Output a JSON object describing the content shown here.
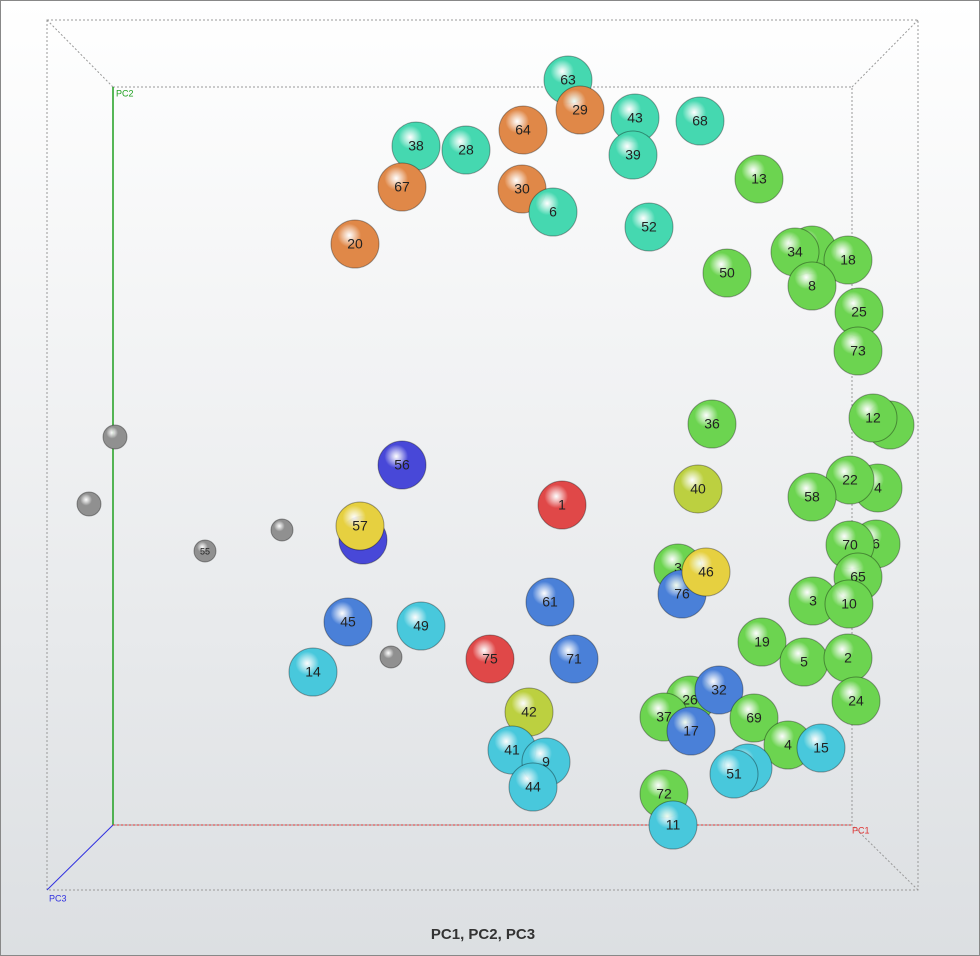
{
  "chart_data": {
    "type": "scatter3d",
    "title": "PC1, PC2, PC3",
    "x_label": "PC1",
    "y_label": "PC2",
    "z_label": "PC3",
    "x_color": "#e03030",
    "y_color": "#20a020",
    "z_color": "#3030e0",
    "points": [
      {
        "label": "63",
        "color": "#45d8b0"
      },
      {
        "label": "29",
        "color": "#e08848"
      },
      {
        "label": "43",
        "color": "#45d8b0"
      },
      {
        "label": "68",
        "color": "#45d8b0"
      },
      {
        "label": "38",
        "color": "#45d8b0"
      },
      {
        "label": "28",
        "color": "#45d8b0"
      },
      {
        "label": "64",
        "color": "#e08848"
      },
      {
        "label": "39",
        "color": "#45d8b0"
      },
      {
        "label": "13",
        "color": "#6cd450"
      },
      {
        "label": "67",
        "color": "#e08848"
      },
      {
        "label": "30",
        "color": "#e08848"
      },
      {
        "label": "6",
        "color": "#45d8b0"
      },
      {
        "label": "52",
        "color": "#45d8b0"
      },
      {
        "label": "20",
        "color": "#e08848"
      },
      {
        "label": null,
        "color": "#6cd450"
      },
      {
        "label": "34",
        "color": "#6cd450"
      },
      {
        "label": "18",
        "color": "#6cd450"
      },
      {
        "label": "50",
        "color": "#6cd450"
      },
      {
        "label": "8",
        "color": "#6cd450"
      },
      {
        "label": "25",
        "color": "#6cd450"
      },
      {
        "label": "73",
        "color": "#6cd450"
      },
      {
        "label": null,
        "color": "#6cd450"
      },
      {
        "label": "12",
        "color": "#6cd450"
      },
      {
        "label": "36",
        "color": "#6cd450"
      },
      {
        "label": "56",
        "color": "#4848d8"
      },
      {
        "label": "1",
        "color": "#e04848"
      },
      {
        "label": "40",
        "color": "#bcd040"
      },
      {
        "label": "4",
        "color": "#6cd450"
      },
      {
        "label": "22",
        "color": "#6cd450"
      },
      {
        "label": "58",
        "color": "#6cd450"
      },
      {
        "label": "6",
        "color": "#6cd450"
      },
      {
        "label": "70",
        "color": "#6cd450"
      },
      {
        "label": "65",
        "color": "#6cd450"
      },
      {
        "label": null,
        "color": "#4848d8"
      },
      {
        "label": "57",
        "color": "#e6d040"
      },
      {
        "label": "3",
        "color": "#6cd450"
      },
      {
        "label": "76",
        "color": "#4a80d8"
      },
      {
        "label": "46",
        "color": "#e6d040"
      },
      {
        "label": "3",
        "color": "#6cd450"
      },
      {
        "label": "10",
        "color": "#6cd450"
      },
      {
        "label": "61",
        "color": "#4a80d8"
      },
      {
        "label": "45",
        "color": "#4a80d8"
      },
      {
        "label": "49",
        "color": "#48c8dc"
      },
      {
        "label": "19",
        "color": "#6cd450"
      },
      {
        "label": "5",
        "color": "#6cd450"
      },
      {
        "label": "2",
        "color": "#6cd450"
      },
      {
        "label": "75",
        "color": "#e04848"
      },
      {
        "label": "71",
        "color": "#4a80d8"
      },
      {
        "label": "14",
        "color": "#48c8dc"
      },
      {
        "label": "26",
        "color": "#6cd450"
      },
      {
        "label": "32",
        "color": "#4a80d8"
      },
      {
        "label": "24",
        "color": "#6cd450"
      },
      {
        "label": "42",
        "color": "#bcd040"
      },
      {
        "label": "37",
        "color": "#6cd450"
      },
      {
        "label": "69",
        "color": "#6cd450"
      },
      {
        "label": "17",
        "color": "#4a80d8"
      },
      {
        "label": "4",
        "color": "#6cd450"
      },
      {
        "label": "15",
        "color": "#48c8dc"
      },
      {
        "label": "41",
        "color": "#48c8dc"
      },
      {
        "label": "9",
        "color": "#48c8dc"
      },
      {
        "label": null,
        "color": "#48c8dc"
      },
      {
        "label": "51",
        "color": "#48c8dc"
      },
      {
        "label": "44",
        "color": "#48c8dc"
      },
      {
        "label": "72",
        "color": "#6cd450"
      },
      {
        "label": "11",
        "color": "#48c8dc"
      },
      {
        "label": null,
        "color": "#909090"
      },
      {
        "label": null,
        "color": "#909090"
      },
      {
        "label": null,
        "color": "#909090"
      },
      {
        "label": "55",
        "color": "#909090"
      },
      {
        "label": null,
        "color": "#909090"
      }
    ]
  }
}
